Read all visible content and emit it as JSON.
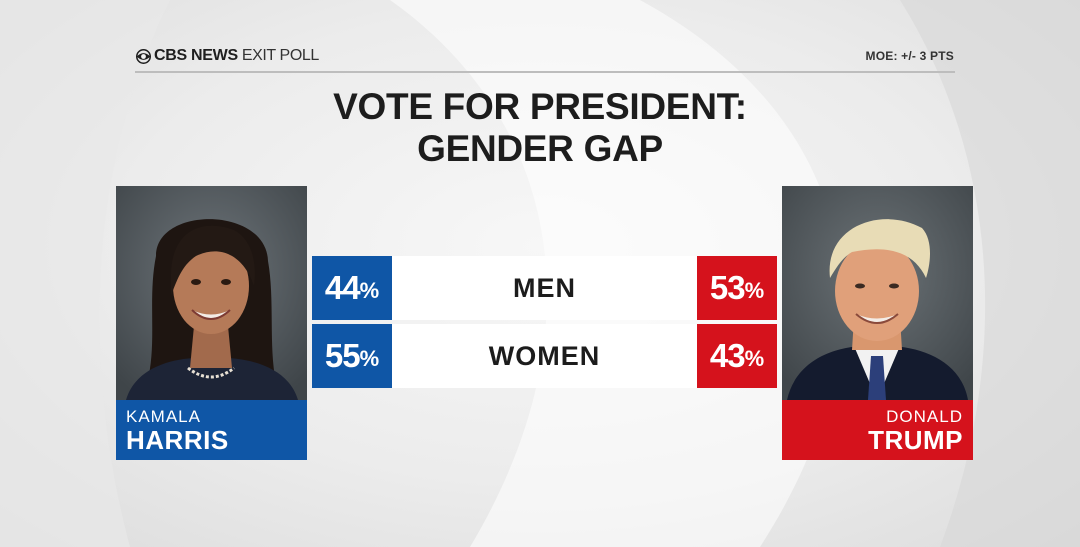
{
  "header": {
    "brand_name": "CBS NEWS",
    "brand_sub": "EXIT POLL",
    "moe": "MOE: +/- 3 PTS"
  },
  "title": {
    "line1": "VOTE FOR PRESIDENT:",
    "line2": "GENDER GAP"
  },
  "candidates": {
    "left": {
      "first": "KAMALA",
      "last": "HARRIS",
      "color": "#0f56a6"
    },
    "right": {
      "first": "DONALD",
      "last": "TRUMP",
      "color": "#d5121c"
    }
  },
  "rows": [
    {
      "label": "MEN",
      "harris": "44",
      "trump": "53"
    },
    {
      "label": "WOMEN",
      "harris": "55",
      "trump": "43"
    }
  ],
  "percent_sign": "%"
}
